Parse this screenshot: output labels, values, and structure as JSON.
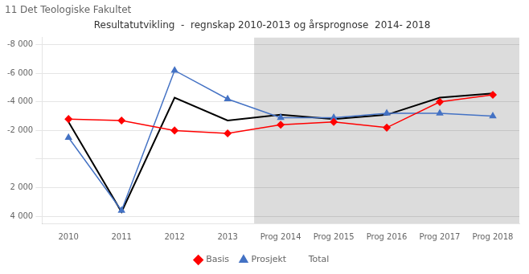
{
  "chart_data": {
    "type": "line",
    "title": "11 Det Teologiske Fakultet",
    "subtitle": "Resultatutvikling  -  regnskap 2010-2013 og årsprognose  2014- 2018",
    "categories": [
      "2010",
      "2011",
      "2012",
      "2013",
      "Prog 2014",
      "Prog 2015",
      "Prog 2016",
      "Prog 2017",
      "Prog 2018"
    ],
    "series": [
      {
        "name": "Basis",
        "color": "#FF0000",
        "marker": "diamond",
        "line_style": "solid",
        "values": [
          -2800,
          -2700,
          -2000,
          -1800,
          -2400,
          -2600,
          -2200,
          -4000,
          -4500
        ]
      },
      {
        "name": "Prosjekt",
        "color": "#4472C4",
        "marker": "triangle",
        "line_style": "solid",
        "values": [
          -1500,
          3600,
          -6200,
          -4200,
          -2900,
          -2900,
          -3200,
          -3200,
          -3000
        ]
      },
      {
        "name": "Total",
        "color": "#000000",
        "marker": "none",
        "line_style": "solid",
        "values": [
          -2600,
          3700,
          -4300,
          -2700,
          -3100,
          -2800,
          -3100,
          -4300,
          -4600
        ]
      }
    ],
    "ylim": [
      4500,
      -8500
    ],
    "yticks": [
      {
        "value": -8000,
        "label": "-8 000"
      },
      {
        "value": -6000,
        "label": "-6 000"
      },
      {
        "value": -4000,
        "label": "-4 000"
      },
      {
        "value": -2000,
        "label": "-2 000"
      },
      {
        "value": 0,
        "label": ""
      },
      {
        "value": 2000,
        "label": "2 000"
      },
      {
        "value": 4000,
        "label": "4 000"
      }
    ],
    "grid": true,
    "legend": "bottom",
    "forecast": {
      "from": "Prog 2014",
      "color": "#DCDCDC"
    }
  }
}
